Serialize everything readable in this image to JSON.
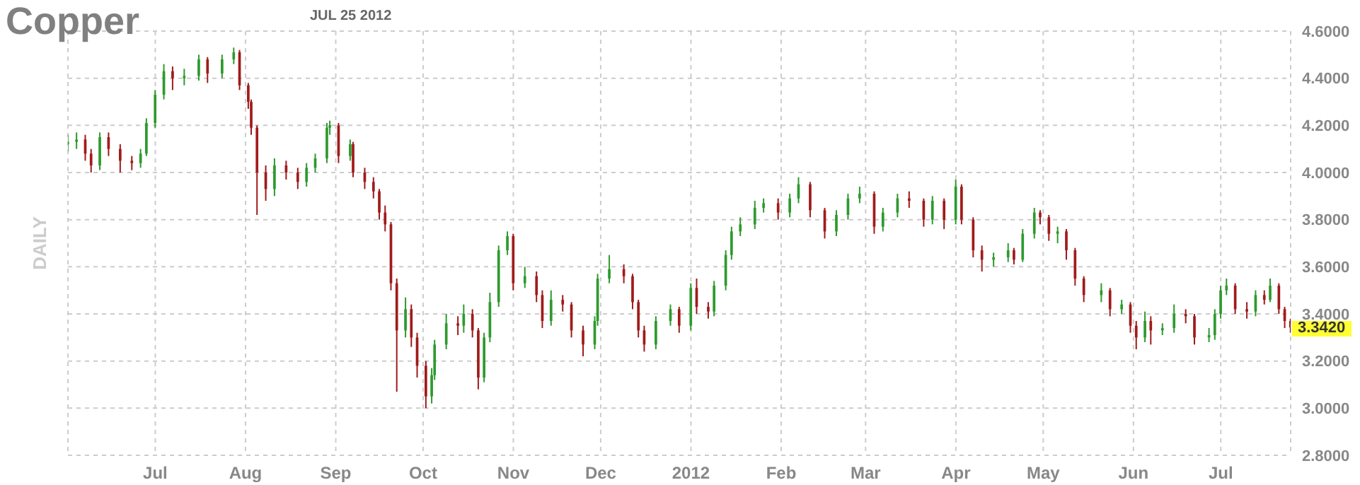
{
  "chart_data": {
    "type": "candlestick",
    "title": "Copper",
    "subtitle": "JUL 25 2012",
    "ylabel": "DAILY",
    "annotations": [
      {
        "text": "3.3420",
        "x": "2012-07-25",
        "y": 3.342
      }
    ],
    "xlim": [
      "2011-06-01",
      "2012-07-25"
    ],
    "xticks": [
      {
        "value": "2011-06-01",
        "label": null
      },
      {
        "value": "2011-07-01",
        "label": "Jul"
      },
      {
        "value": "2011-08-01",
        "label": "Aug"
      },
      {
        "value": "2011-09-01",
        "label": "Sep"
      },
      {
        "value": "2011-10-01",
        "label": "Oct"
      },
      {
        "value": "2011-11-01",
        "label": "Nov"
      },
      {
        "value": "2011-12-01",
        "label": "Dec"
      },
      {
        "value": "2012-01-01",
        "label": "2012"
      },
      {
        "value": "2012-02-01",
        "label": "Feb"
      },
      {
        "value": "2012-03-01",
        "label": "Mar"
      },
      {
        "value": "2012-04-01",
        "label": "Apr"
      },
      {
        "value": "2012-05-01",
        "label": "May"
      },
      {
        "value": "2012-06-01",
        "label": "Jun"
      },
      {
        "value": "2012-07-01",
        "label": "Jul"
      }
    ],
    "ylim": [
      2.8,
      4.6
    ],
    "yticks": [
      {
        "value": 2.8,
        "label": "2.8000"
      },
      {
        "value": 3.0,
        "label": "3.0000"
      },
      {
        "value": 3.2,
        "label": "3.2000"
      },
      {
        "value": 3.4,
        "label": "3.4000"
      },
      {
        "value": 3.6,
        "label": "3.6000"
      },
      {
        "value": 3.8,
        "label": "3.8000"
      },
      {
        "value": 4.0,
        "label": "4.0000"
      },
      {
        "value": 4.2,
        "label": "4.2000"
      },
      {
        "value": 4.4,
        "label": "4.4000"
      },
      {
        "value": 4.6,
        "label": "4.6000"
      }
    ],
    "grid": true,
    "x": [
      "2011-06-01",
      "2011-06-04",
      "2011-06-07",
      "2011-06-09",
      "2011-06-12",
      "2011-06-15",
      "2011-06-19",
      "2011-06-23",
      "2011-06-26",
      "2011-06-28",
      "2011-07-01",
      "2011-07-04",
      "2011-07-07",
      "2011-07-11",
      "2011-07-16",
      "2011-07-19",
      "2011-07-24",
      "2011-07-28",
      "2011-07-30",
      "2011-08-02",
      "2011-08-03",
      "2011-08-05",
      "2011-08-08",
      "2011-08-11",
      "2011-08-15",
      "2011-08-19",
      "2011-08-22",
      "2011-08-25",
      "2011-08-29",
      "2011-08-30",
      "2011-09-02",
      "2011-09-06",
      "2011-09-07",
      "2011-09-11",
      "2011-09-14",
      "2011-09-16",
      "2011-09-18",
      "2011-09-20",
      "2011-09-22",
      "2011-09-25",
      "2011-09-27",
      "2011-09-29",
      "2011-10-02",
      "2011-10-04",
      "2011-10-05",
      "2011-10-09",
      "2011-10-13",
      "2011-10-15",
      "2011-10-18",
      "2011-10-20",
      "2011-10-22",
      "2011-10-24",
      "2011-10-27",
      "2011-10-30",
      "2011-11-01",
      "2011-11-05",
      "2011-11-09",
      "2011-11-11",
      "2011-11-14",
      "2011-11-18",
      "2011-11-21",
      "2011-11-25",
      "2011-11-29",
      "2011-11-30",
      "2011-12-04",
      "2011-12-09",
      "2011-12-12",
      "2011-12-14",
      "2011-12-16",
      "2011-12-20",
      "2011-12-25",
      "2011-12-28",
      "2012-01-01",
      "2012-01-03",
      "2012-01-07",
      "2012-01-09",
      "2012-01-13",
      "2012-01-15",
      "2012-01-18",
      "2012-01-23",
      "2012-01-26",
      "2012-01-31",
      "2012-02-04",
      "2012-02-07",
      "2012-02-11",
      "2012-02-16",
      "2012-02-20",
      "2012-02-24",
      "2012-02-28",
      "2012-03-04",
      "2012-03-07",
      "2012-03-12",
      "2012-03-16",
      "2012-03-21",
      "2012-03-24",
      "2012-03-28",
      "2012-04-01",
      "2012-04-03",
      "2012-04-07",
      "2012-04-10",
      "2012-04-14",
      "2012-04-19",
      "2012-04-21",
      "2012-04-24",
      "2012-04-28",
      "2012-04-30",
      "2012-05-03",
      "2012-05-06",
      "2012-05-09",
      "2012-05-12",
      "2012-05-15",
      "2012-05-21",
      "2012-05-24",
      "2012-05-28",
      "2012-05-31",
      "2012-06-02",
      "2012-06-05",
      "2012-06-07",
      "2012-06-11",
      "2012-06-15",
      "2012-06-19",
      "2012-06-22",
      "2012-06-27",
      "2012-06-29",
      "2012-07-01",
      "2012-07-03",
      "2012-07-06",
      "2012-07-10",
      "2012-07-13",
      "2012-07-16",
      "2012-07-18",
      "2012-07-21",
      "2012-07-23",
      "2012-07-25"
    ],
    "ohlc": [
      [
        4.12,
        4.16,
        4.09,
        4.13
      ],
      [
        4.13,
        4.17,
        4.1,
        4.14
      ],
      [
        4.14,
        4.16,
        4.05,
        4.08
      ],
      [
        4.08,
        4.1,
        4.0,
        4.03
      ],
      [
        4.03,
        4.17,
        4.01,
        4.15
      ],
      [
        4.15,
        4.17,
        4.07,
        4.1
      ],
      [
        4.1,
        4.12,
        4.0,
        4.05
      ],
      [
        4.05,
        4.07,
        4.01,
        4.04
      ],
      [
        4.04,
        4.1,
        4.02,
        4.08
      ],
      [
        4.08,
        4.23,
        4.07,
        4.21
      ],
      [
        4.21,
        4.35,
        4.19,
        4.33
      ],
      [
        4.33,
        4.46,
        4.31,
        4.43
      ],
      [
        4.43,
        4.45,
        4.35,
        4.4
      ],
      [
        4.4,
        4.44,
        4.37,
        4.41
      ],
      [
        4.41,
        4.5,
        4.39,
        4.48
      ],
      [
        4.48,
        4.49,
        4.38,
        4.42
      ],
      [
        4.42,
        4.5,
        4.4,
        4.48
      ],
      [
        4.48,
        4.53,
        4.46,
        4.51
      ],
      [
        4.51,
        4.52,
        4.35,
        4.37
      ],
      [
        4.37,
        4.38,
        4.27,
        4.3
      ],
      [
        4.3,
        4.31,
        4.16,
        4.19
      ],
      [
        4.19,
        4.2,
        3.82,
        4.0
      ],
      [
        4.0,
        4.03,
        3.88,
        3.93
      ],
      [
        3.93,
        4.06,
        3.9,
        4.03
      ],
      [
        4.03,
        4.05,
        3.97,
        4.0
      ],
      [
        4.0,
        4.02,
        3.93,
        3.96
      ],
      [
        3.96,
        4.04,
        3.94,
        4.02
      ],
      [
        4.02,
        4.08,
        4.0,
        4.06
      ],
      [
        4.06,
        4.21,
        4.04,
        4.19
      ],
      [
        4.19,
        4.22,
        4.16,
        4.2
      ],
      [
        4.2,
        4.21,
        4.04,
        4.07
      ],
      [
        4.07,
        4.14,
        4.05,
        4.12
      ],
      [
        4.12,
        4.13,
        3.98,
        4.0
      ],
      [
        4.0,
        4.02,
        3.93,
        3.96
      ],
      [
        3.96,
        3.98,
        3.89,
        3.92
      ],
      [
        3.92,
        3.93,
        3.8,
        3.83
      ],
      [
        3.83,
        3.86,
        3.75,
        3.78
      ],
      [
        3.78,
        3.79,
        3.5,
        3.53
      ],
      [
        3.53,
        3.55,
        3.07,
        3.33
      ],
      [
        3.33,
        3.47,
        3.3,
        3.42
      ],
      [
        3.42,
        3.44,
        3.26,
        3.3
      ],
      [
        3.3,
        3.32,
        3.13,
        3.18
      ],
      [
        3.18,
        3.2,
        3.0,
        3.05
      ],
      [
        3.05,
        3.17,
        3.02,
        3.14
      ],
      [
        3.14,
        3.29,
        3.12,
        3.27
      ],
      [
        3.27,
        3.4,
        3.25,
        3.36
      ],
      [
        3.36,
        3.39,
        3.31,
        3.35
      ],
      [
        3.35,
        3.44,
        3.32,
        3.4
      ],
      [
        3.4,
        3.42,
        3.3,
        3.33
      ],
      [
        3.33,
        3.34,
        3.08,
        3.13
      ],
      [
        3.13,
        3.32,
        3.11,
        3.3
      ],
      [
        3.3,
        3.49,
        3.28,
        3.45
      ],
      [
        3.45,
        3.69,
        3.43,
        3.67
      ],
      [
        3.67,
        3.75,
        3.65,
        3.73
      ],
      [
        3.73,
        3.74,
        3.5,
        3.53
      ],
      [
        3.53,
        3.6,
        3.51,
        3.56
      ],
      [
        3.56,
        3.58,
        3.45,
        3.48
      ],
      [
        3.48,
        3.5,
        3.34,
        3.37
      ],
      [
        3.37,
        3.5,
        3.35,
        3.46
      ],
      [
        3.46,
        3.48,
        3.41,
        3.44
      ],
      [
        3.44,
        3.45,
        3.3,
        3.33
      ],
      [
        3.33,
        3.35,
        3.22,
        3.27
      ],
      [
        3.27,
        3.39,
        3.25,
        3.37
      ],
      [
        3.37,
        3.57,
        3.35,
        3.55
      ],
      [
        3.55,
        3.65,
        3.53,
        3.59
      ],
      [
        3.59,
        3.61,
        3.53,
        3.56
      ],
      [
        3.56,
        3.57,
        3.42,
        3.45
      ],
      [
        3.45,
        3.46,
        3.3,
        3.33
      ],
      [
        3.33,
        3.35,
        3.24,
        3.27
      ],
      [
        3.27,
        3.39,
        3.25,
        3.37
      ],
      [
        3.37,
        3.44,
        3.35,
        3.42
      ],
      [
        3.42,
        3.43,
        3.32,
        3.35
      ],
      [
        3.35,
        3.53,
        3.33,
        3.51
      ],
      [
        3.51,
        3.55,
        3.4,
        3.43
      ],
      [
        3.43,
        3.45,
        3.38,
        3.41
      ],
      [
        3.41,
        3.54,
        3.39,
        3.52
      ],
      [
        3.52,
        3.67,
        3.5,
        3.65
      ],
      [
        3.65,
        3.77,
        3.63,
        3.75
      ],
      [
        3.75,
        3.81,
        3.73,
        3.78
      ],
      [
        3.78,
        3.88,
        3.76,
        3.85
      ],
      [
        3.85,
        3.89,
        3.83,
        3.87
      ],
      [
        3.87,
        3.89,
        3.8,
        3.83
      ],
      [
        3.83,
        3.91,
        3.81,
        3.89
      ],
      [
        3.89,
        3.98,
        3.87,
        3.95
      ],
      [
        3.95,
        3.96,
        3.81,
        3.84
      ],
      [
        3.84,
        3.85,
        3.72,
        3.75
      ],
      [
        3.75,
        3.84,
        3.73,
        3.82
      ],
      [
        3.82,
        3.91,
        3.8,
        3.89
      ],
      [
        3.89,
        3.94,
        3.87,
        3.91
      ],
      [
        3.91,
        3.92,
        3.74,
        3.77
      ],
      [
        3.77,
        3.85,
        3.75,
        3.83
      ],
      [
        3.83,
        3.91,
        3.81,
        3.89
      ],
      [
        3.89,
        3.92,
        3.85,
        3.88
      ],
      [
        3.88,
        3.89,
        3.77,
        3.8
      ],
      [
        3.8,
        3.9,
        3.78,
        3.88
      ],
      [
        3.88,
        3.89,
        3.76,
        3.8
      ],
      [
        3.8,
        3.97,
        3.78,
        3.94
      ],
      [
        3.94,
        3.95,
        3.78,
        3.8
      ],
      [
        3.8,
        3.81,
        3.64,
        3.67
      ],
      [
        3.67,
        3.69,
        3.58,
        3.63
      ],
      [
        3.63,
        3.66,
        3.6,
        3.64
      ],
      [
        3.64,
        3.7,
        3.62,
        3.67
      ],
      [
        3.67,
        3.68,
        3.61,
        3.63
      ],
      [
        3.63,
        3.76,
        3.62,
        3.74
      ],
      [
        3.74,
        3.85,
        3.72,
        3.83
      ],
      [
        3.83,
        3.84,
        3.78,
        3.81
      ],
      [
        3.81,
        3.82,
        3.71,
        3.74
      ],
      [
        3.74,
        3.77,
        3.7,
        3.75
      ],
      [
        3.75,
        3.76,
        3.63,
        3.67
      ],
      [
        3.67,
        3.68,
        3.52,
        3.55
      ],
      [
        3.55,
        3.56,
        3.45,
        3.48
      ],
      [
        3.48,
        3.53,
        3.45,
        3.5
      ],
      [
        3.5,
        3.51,
        3.39,
        3.42
      ],
      [
        3.42,
        3.46,
        3.4,
        3.44
      ],
      [
        3.44,
        3.45,
        3.32,
        3.35
      ],
      [
        3.35,
        3.37,
        3.25,
        3.3
      ],
      [
        3.3,
        3.41,
        3.28,
        3.37
      ],
      [
        3.37,
        3.39,
        3.27,
        3.33
      ],
      [
        3.33,
        3.36,
        3.31,
        3.34
      ],
      [
        3.34,
        3.44,
        3.32,
        3.4
      ],
      [
        3.4,
        3.42,
        3.36,
        3.39
      ],
      [
        3.39,
        3.4,
        3.27,
        3.3
      ],
      [
        3.3,
        3.34,
        3.28,
        3.31
      ],
      [
        3.31,
        3.42,
        3.29,
        3.4
      ],
      [
        3.4,
        3.52,
        3.38,
        3.5
      ],
      [
        3.5,
        3.55,
        3.48,
        3.52
      ],
      [
        3.52,
        3.53,
        3.4,
        3.42
      ],
      [
        3.42,
        3.45,
        3.38,
        3.41
      ],
      [
        3.41,
        3.5,
        3.39,
        3.48
      ],
      [
        3.48,
        3.5,
        3.44,
        3.46
      ],
      [
        3.46,
        3.55,
        3.45,
        3.52
      ],
      [
        3.52,
        3.53,
        3.4,
        3.42
      ],
      [
        3.42,
        3.43,
        3.34,
        3.37
      ],
      [
        3.37,
        3.38,
        3.32,
        3.342
      ]
    ],
    "colors": [
      "#2e9a2e",
      "#2e9a2e",
      "#a01b1b",
      "#a01b1b",
      "#2e9a2e",
      "#a01b1b",
      "#a01b1b",
      "#a01b1b",
      "#2e9a2e",
      "#2e9a2e",
      "#2e9a2e",
      "#2e9a2e",
      "#a01b1b",
      "#2e9a2e",
      "#2e9a2e",
      "#a01b1b",
      "#2e9a2e",
      "#2e9a2e",
      "#a01b1b",
      "#a01b1b",
      "#a01b1b",
      "#a01b1b",
      "#a01b1b",
      "#2e9a2e",
      "#a01b1b",
      "#a01b1b",
      "#2e9a2e",
      "#2e9a2e",
      "#2e9a2e",
      "#2e9a2e",
      "#a01b1b",
      "#2e9a2e",
      "#a01b1b",
      "#a01b1b",
      "#a01b1b",
      "#a01b1b",
      "#a01b1b",
      "#a01b1b",
      "#a01b1b",
      "#2e9a2e",
      "#a01b1b",
      "#a01b1b",
      "#a01b1b",
      "#2e9a2e",
      "#2e9a2e",
      "#2e9a2e",
      "#a01b1b",
      "#2e9a2e",
      "#a01b1b",
      "#a01b1b",
      "#2e9a2e",
      "#2e9a2e",
      "#2e9a2e",
      "#2e9a2e",
      "#a01b1b",
      "#2e9a2e",
      "#a01b1b",
      "#a01b1b",
      "#2e9a2e",
      "#a01b1b",
      "#a01b1b",
      "#a01b1b",
      "#2e9a2e",
      "#2e9a2e",
      "#2e9a2e",
      "#a01b1b",
      "#a01b1b",
      "#a01b1b",
      "#a01b1b",
      "#2e9a2e",
      "#2e9a2e",
      "#a01b1b",
      "#2e9a2e",
      "#a01b1b",
      "#a01b1b",
      "#2e9a2e",
      "#2e9a2e",
      "#2e9a2e",
      "#2e9a2e",
      "#2e9a2e",
      "#2e9a2e",
      "#a01b1b",
      "#2e9a2e",
      "#2e9a2e",
      "#a01b1b",
      "#a01b1b",
      "#2e9a2e",
      "#2e9a2e",
      "#2e9a2e",
      "#a01b1b",
      "#2e9a2e",
      "#2e9a2e",
      "#a01b1b",
      "#a01b1b",
      "#2e9a2e",
      "#a01b1b",
      "#2e9a2e",
      "#a01b1b",
      "#a01b1b",
      "#a01b1b",
      "#2e9a2e",
      "#2e9a2e",
      "#a01b1b",
      "#2e9a2e",
      "#2e9a2e",
      "#a01b1b",
      "#a01b1b",
      "#2e9a2e",
      "#a01b1b",
      "#a01b1b",
      "#a01b1b",
      "#2e9a2e",
      "#a01b1b",
      "#2e9a2e",
      "#a01b1b",
      "#a01b1b",
      "#2e9a2e",
      "#a01b1b",
      "#2e9a2e",
      "#2e9a2e",
      "#a01b1b",
      "#a01b1b",
      "#2e9a2e",
      "#2e9a2e",
      "#2e9a2e",
      "#2e9a2e",
      "#a01b1b",
      "#a01b1b",
      "#2e9a2e",
      "#a01b1b",
      "#2e9a2e",
      "#a01b1b",
      "#a01b1b",
      "#a01b1b"
    ]
  }
}
